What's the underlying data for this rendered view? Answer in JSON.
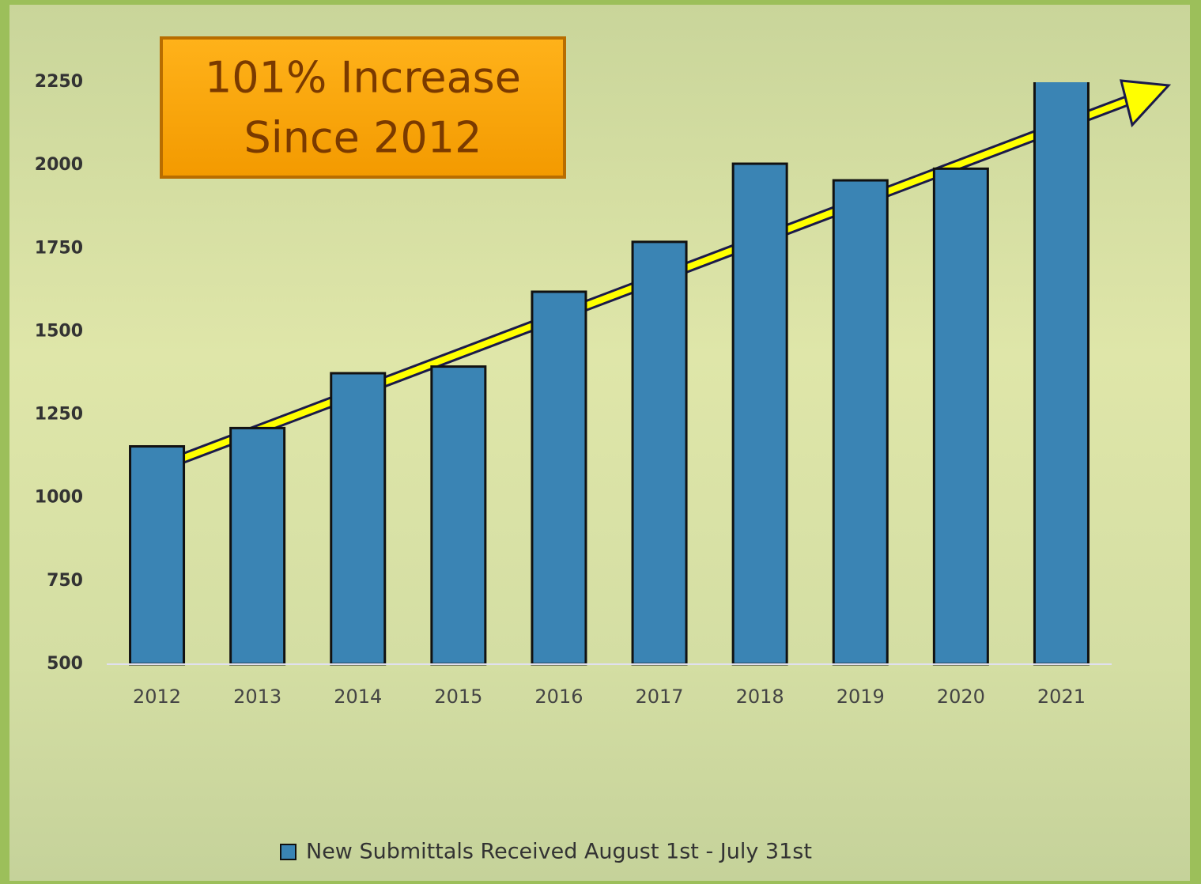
{
  "chart_data": {
    "type": "bar",
    "annotation": [
      "101% Increase",
      "Since 2012"
    ],
    "categories": [
      "2012",
      "2013",
      "2014",
      "2015",
      "2016",
      "2017",
      "2018",
      "2019",
      "2020",
      "2021"
    ],
    "series": [
      {
        "name": "New Submittals Received August 1st - July 31st",
        "color": "#3a84b4",
        "values": [
          1155,
          1210,
          1375,
          1395,
          1620,
          1770,
          2005,
          1955,
          1990,
          2320
        ]
      }
    ],
    "ylim": [
      500,
      2250
    ],
    "yticks": [
      500,
      750,
      1000,
      1250,
      1500,
      1750,
      2000,
      2250
    ]
  }
}
